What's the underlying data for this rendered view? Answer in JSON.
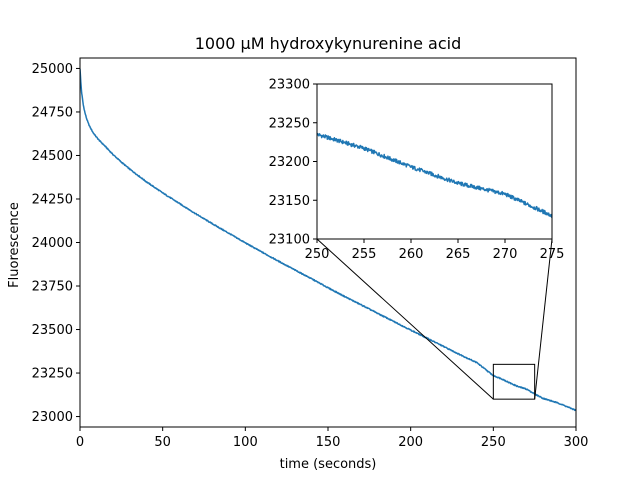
{
  "chart_data": {
    "type": "line",
    "title": "1000 μM hydroxykynurenine acid",
    "xlabel": "time (seconds)",
    "ylabel": "Fluorescence",
    "xlim": [
      0,
      300
    ],
    "ylim": [
      22940,
      25060
    ],
    "xticks": [
      0,
      50,
      100,
      150,
      200,
      250,
      300
    ],
    "yticks": [
      23000,
      23250,
      23500,
      23750,
      24000,
      24250,
      24500,
      24750,
      25000
    ],
    "grid": false,
    "series_color": "#1f77b4",
    "series": [
      {
        "x": [
          0,
          0.5,
          1,
          2,
          3,
          4,
          5,
          6,
          8,
          10,
          12,
          15,
          20,
          25,
          30,
          40,
          50,
          60,
          70,
          80,
          90,
          100,
          110,
          120,
          130,
          140,
          150,
          160,
          170,
          180,
          190,
          200,
          210,
          220,
          230,
          240,
          250,
          255,
          260,
          265,
          270,
          275,
          280,
          290,
          300
        ],
        "y": [
          25000,
          24920,
          24860,
          24790,
          24745,
          24712,
          24685,
          24664,
          24630,
          24605,
          24583,
          24555,
          24505,
          24462,
          24422,
          24350,
          24285,
          24225,
          24165,
          24108,
          24053,
          23998,
          23945,
          23893,
          23842,
          23792,
          23740,
          23690,
          23642,
          23593,
          23545,
          23497,
          23450,
          23402,
          23355,
          23310,
          23235,
          23217,
          23193,
          23172,
          23158,
          23130,
          23105,
          23075,
          23035
        ]
      }
    ],
    "inset": {
      "xlim": [
        250,
        275
      ],
      "ylim": [
        23100,
        23300
      ],
      "xticks": [
        250,
        255,
        260,
        265,
        270,
        275
      ],
      "yticks": [
        23100,
        23150,
        23200,
        23250,
        23300
      ],
      "zoom_box": {
        "x": [
          250,
          275
        ],
        "y": [
          23100,
          23300
        ]
      }
    }
  }
}
